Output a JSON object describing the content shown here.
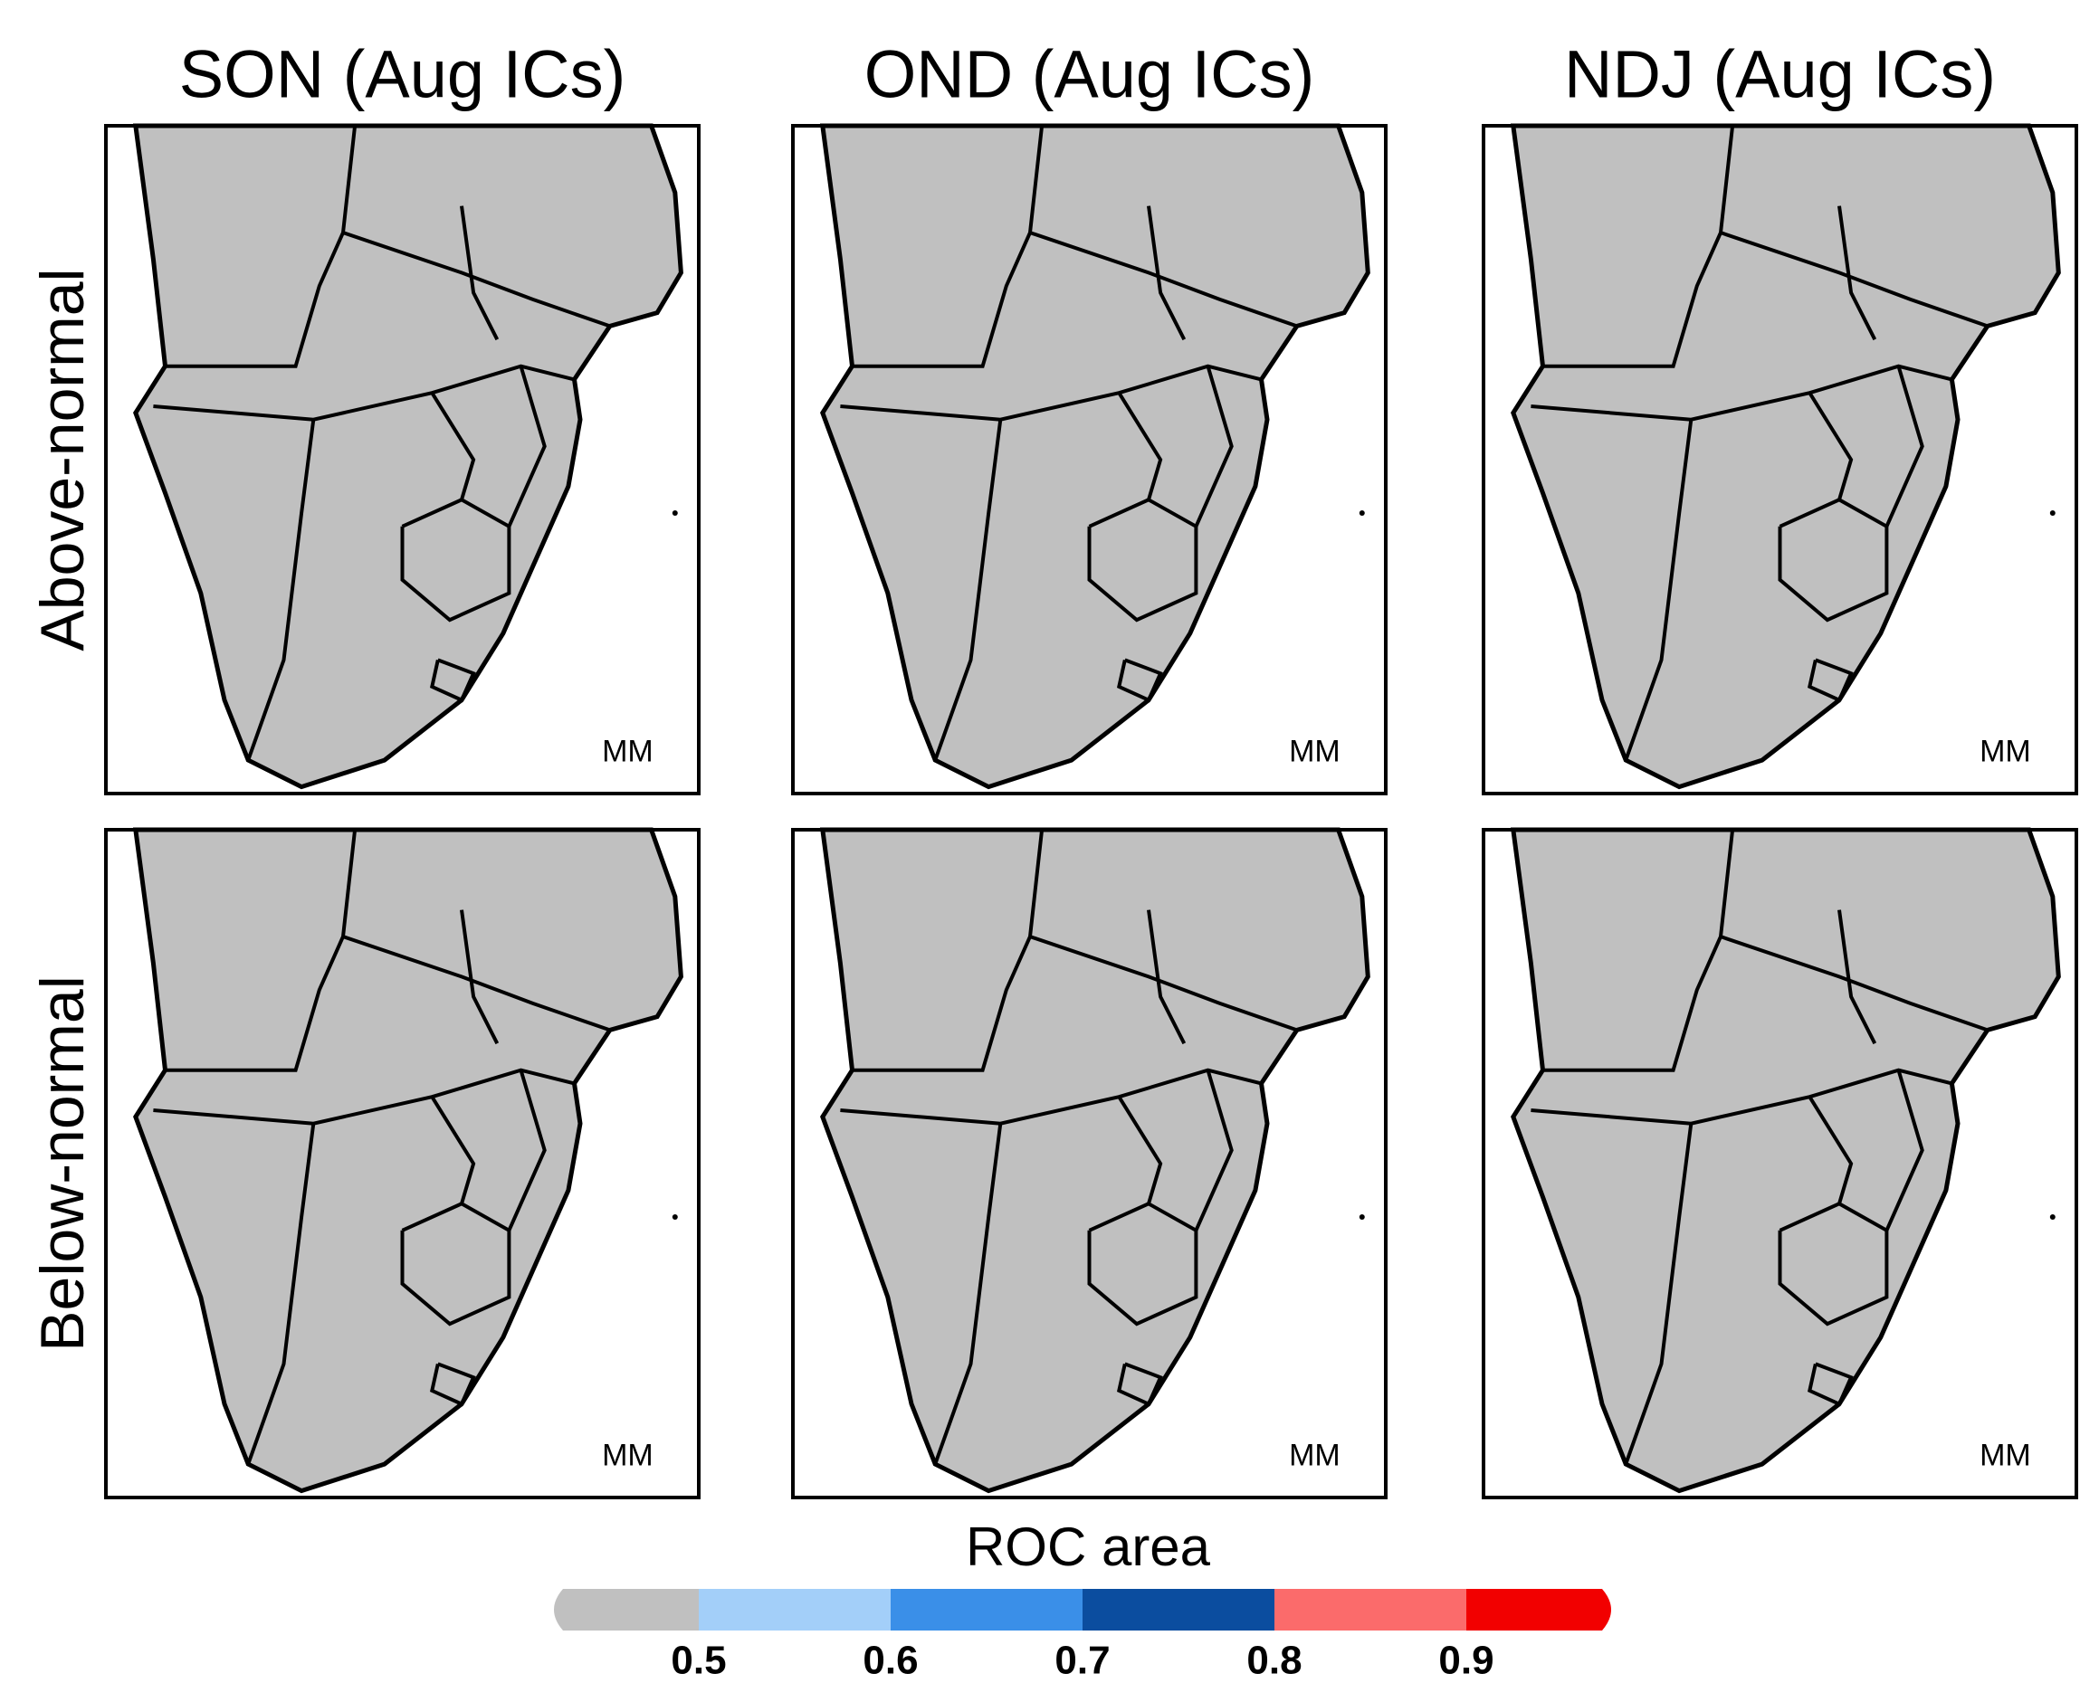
{
  "panels": {
    "column_titles": [
      "SON (Aug ICs)",
      "OND (Aug ICs)",
      "NDJ (Aug ICs)"
    ],
    "row_labels": [
      "Above-normal",
      "Below-normal"
    ],
    "model_label": "MM"
  },
  "colorbar": {
    "title": "ROC area",
    "ticks": [
      0.5,
      0.6,
      0.7,
      0.8,
      0.9
    ],
    "colors": [
      "#c0c0c0",
      "#a3cff9",
      "#3a8fe8",
      "#0b4d9f",
      "#fb6b6b",
      "#f20000"
    ]
  }
}
